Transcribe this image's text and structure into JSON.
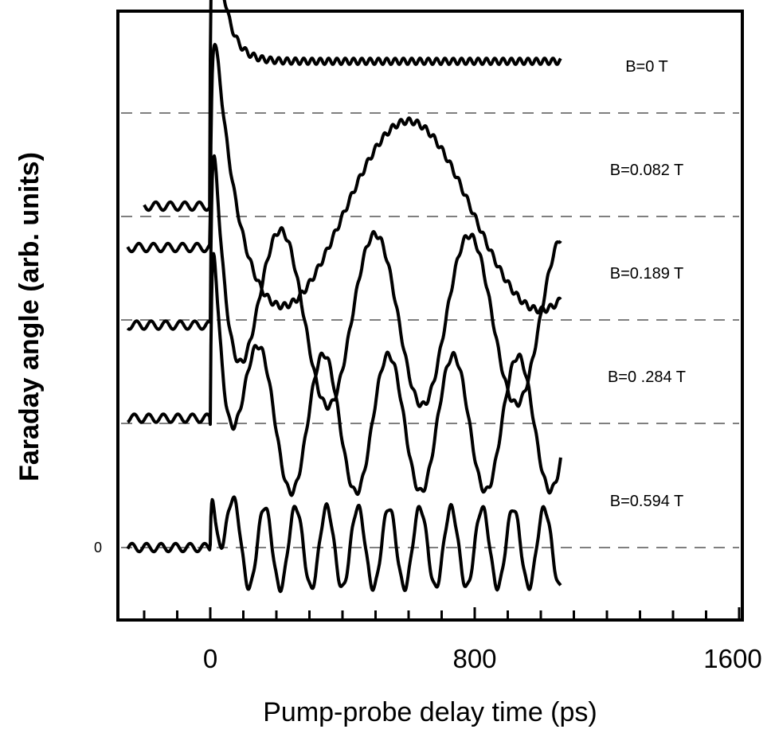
{
  "chart_data": {
    "type": "line",
    "title": "",
    "xlabel": "Pump-probe delay time (ps)",
    "ylabel": "Faraday angle (arb. units)",
    "xlim": [
      -300,
      1600
    ],
    "x_ticks": [
      "0",
      "800",
      "1600"
    ],
    "y_zero_label": "0",
    "grid": false,
    "baseline_style": "dashed",
    "series": [
      {
        "name": "B=0 T",
        "baseline": 4.2,
        "pre_level": -0.9,
        "peak": 2.6,
        "tail": 0.5,
        "decay_ps": 35,
        "osc_amp": 0.0,
        "period_ps": 0,
        "osc_decay_ps": 0,
        "t_end": 1060
      },
      {
        "name": "B=0.082 T",
        "baseline": 3.2,
        "pre_level": -0.3,
        "peak": 2.5,
        "tail": 0.0,
        "decay_ps": 60,
        "osc_amp": 0.95,
        "period_ps": 800,
        "osc_decay_ps": 20000,
        "t_end": 1060
      },
      {
        "name": "B=0.189 T",
        "baseline": 2.2,
        "pre_level": -0.05,
        "peak": 2.7,
        "tail": 0.0,
        "decay_ps": 45,
        "osc_amp": 0.85,
        "period_ps": 285,
        "osc_decay_ps": 20000,
        "t_end": 1060
      },
      {
        "name": "B=0 .284 T",
        "baseline": 1.2,
        "pre_level": 0.05,
        "peak": 2.9,
        "tail": 0.0,
        "decay_ps": 40,
        "osc_amp": 0.68,
        "period_ps": 196,
        "osc_decay_ps": 20000,
        "t_end": 1060
      },
      {
        "name": "B=0.594 T",
        "baseline": 0.0,
        "pre_level": 0.0,
        "peak": 1.25,
        "tail": 0.0,
        "decay_ps": 25,
        "osc_amp": 0.4,
        "period_ps": 94,
        "osc_decay_ps": 20000,
        "t_end": 1060
      }
    ]
  }
}
